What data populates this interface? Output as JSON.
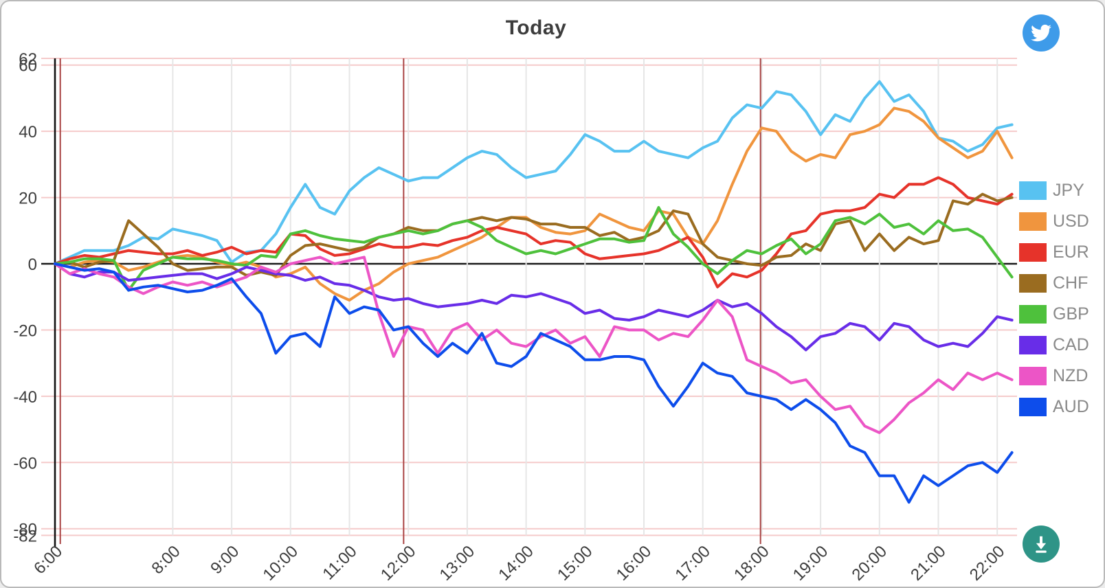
{
  "title": "Today",
  "buttons": {
    "twitter_color": "#3E9BE9",
    "download_color": "#2E9487"
  },
  "chart_data": {
    "type": "line",
    "title": "Today",
    "xlabel": "",
    "ylabel": "",
    "ylim": [
      -82,
      62
    ],
    "xlim_hours": [
      6,
      22.33
    ],
    "grid": {
      "h_grid_color": "#f5caca",
      "v_grid_color": "#e6e6e6",
      "zero_line_color": "#1a1a1a",
      "axis_line_color": "#111111",
      "marker_line_color": "#a94444",
      "tick_text_color": "#3d3d3d"
    },
    "legend_position": "right",
    "y_ticks": [
      62,
      60,
      40,
      20,
      0,
      -20,
      -40,
      -60,
      -80,
      -82
    ],
    "x_ticks": [
      {
        "hour": 6,
        "label": "6:00"
      },
      {
        "hour": 8,
        "label": "8:00"
      },
      {
        "hour": 9,
        "label": "9:00"
      },
      {
        "hour": 10,
        "label": "10:00"
      },
      {
        "hour": 11,
        "label": "11:00"
      },
      {
        "hour": 12,
        "label": "12:00"
      },
      {
        "hour": 13,
        "label": "13:00"
      },
      {
        "hour": 14,
        "label": "14:00"
      },
      {
        "hour": 15,
        "label": "15:00"
      },
      {
        "hour": 16,
        "label": "16:00"
      },
      {
        "hour": 17,
        "label": "17:00"
      },
      {
        "hour": 18,
        "label": "18:00"
      },
      {
        "hour": 19,
        "label": "19:00"
      },
      {
        "hour": 20,
        "label": "20:00"
      },
      {
        "hour": 21,
        "label": "21:00"
      },
      {
        "hour": 22,
        "label": "22:00"
      }
    ],
    "marker_hours": [
      6.09,
      11.92,
      17.98
    ],
    "x": [
      6,
      6.25,
      6.5,
      6.75,
      7,
      7.25,
      7.5,
      7.75,
      8,
      8.25,
      8.5,
      8.75,
      9,
      9.25,
      9.5,
      9.75,
      10,
      10.25,
      10.5,
      10.75,
      11,
      11.25,
      11.5,
      11.75,
      12,
      12.25,
      12.5,
      12.75,
      13,
      13.25,
      13.5,
      13.75,
      14,
      14.25,
      14.5,
      14.75,
      15,
      15.25,
      15.5,
      15.75,
      16,
      16.25,
      16.5,
      16.75,
      17,
      17.25,
      17.5,
      17.75,
      18,
      18.25,
      18.5,
      18.75,
      19,
      19.25,
      19.5,
      19.75,
      20,
      20.25,
      20.5,
      20.75,
      21,
      21.25,
      21.5,
      21.75,
      22,
      22.25
    ],
    "series": [
      {
        "name": "JPY",
        "color": "#58C2F1",
        "values": [
          0,
          2,
          4,
          4,
          4,
          5.5,
          8,
          7.5,
          10.5,
          9.5,
          8.5,
          7,
          0.5,
          3.5,
          4,
          9,
          17,
          24,
          17,
          15,
          22,
          26,
          29,
          27,
          25,
          26,
          26,
          29,
          32,
          34,
          33,
          29,
          26,
          27,
          28,
          33,
          39,
          37,
          34,
          34,
          37,
          34,
          33,
          32,
          35,
          37,
          44,
          48,
          47,
          52,
          51,
          46,
          39,
          45,
          43,
          50,
          55,
          49,
          51,
          46,
          38,
          37,
          34,
          36,
          41,
          42
        ]
      },
      {
        "name": "USD",
        "color": "#F0953E",
        "values": [
          0,
          -1,
          0.5,
          1,
          0.5,
          -2,
          -1,
          0.5,
          2,
          2.5,
          2,
          0.5,
          -0.5,
          0.5,
          -1,
          -4,
          -3,
          -1,
          -6,
          -9,
          -11,
          -8,
          -6,
          -2.5,
          0,
          1,
          2,
          4,
          6,
          8,
          11,
          14,
          14,
          11,
          9.5,
          9,
          10,
          15,
          13,
          11,
          10,
          16,
          15,
          8,
          6,
          13,
          24,
          34,
          41,
          40,
          34,
          31,
          33,
          32,
          39,
          40,
          42,
          47,
          46,
          43,
          38,
          35,
          32,
          34,
          40,
          32
        ]
      },
      {
        "name": "EUR",
        "color": "#E6332A",
        "values": [
          0,
          1.5,
          2.5,
          2,
          3,
          4,
          3.5,
          3,
          3,
          4,
          2.5,
          3.5,
          5,
          3,
          4,
          3.5,
          9,
          8.5,
          4.5,
          2.5,
          3,
          4.5,
          6,
          5,
          5,
          6,
          5.5,
          7,
          8,
          10,
          11,
          10,
          9,
          6,
          7,
          6.5,
          3,
          1.5,
          2,
          2.5,
          3,
          4,
          6,
          8,
          2,
          -7,
          -3,
          -4,
          -2,
          3,
          9,
          10,
          15,
          16,
          16,
          17,
          21,
          20,
          24,
          24,
          26,
          24,
          20,
          19,
          18,
          21
        ]
      },
      {
        "name": "CHF",
        "color": "#9A6C20",
        "values": [
          0,
          0.5,
          -1,
          0.5,
          1,
          13,
          9,
          5,
          0,
          -2,
          -1.5,
          -1,
          -1,
          -3.5,
          -2.5,
          -3.5,
          2.5,
          5.5,
          6,
          5,
          4,
          5,
          8,
          9,
          11,
          10,
          10,
          12,
          13,
          14,
          13,
          14,
          13.5,
          12,
          12,
          11,
          11,
          8.5,
          9.5,
          7,
          8,
          10,
          16,
          15,
          6,
          2,
          1,
          0,
          -0.5,
          2,
          2.5,
          6,
          4,
          12,
          13,
          4,
          9,
          4,
          8,
          6,
          7,
          19,
          18,
          21,
          19,
          20
        ]
      },
      {
        "name": "GBP",
        "color": "#4EC13C",
        "values": [
          0,
          0.5,
          1.5,
          1.5,
          1,
          -8,
          -2,
          0,
          2,
          1.5,
          1.5,
          1,
          0,
          -0.5,
          2.5,
          2,
          9,
          10,
          8.5,
          7.5,
          7,
          6.5,
          8,
          9,
          10,
          9,
          10,
          12,
          13,
          11,
          7,
          5,
          3,
          4,
          3,
          4.5,
          6,
          7.5,
          7.5,
          6.5,
          7,
          17,
          9,
          5,
          0,
          -3,
          1,
          4,
          3,
          5.5,
          7.5,
          3,
          6,
          13,
          14,
          12,
          15,
          11,
          12,
          9,
          13,
          10,
          10.5,
          8,
          2,
          -4
        ]
      },
      {
        "name": "CAD",
        "color": "#682DE8",
        "values": [
          0,
          -3,
          -4,
          -2.5,
          -2.5,
          -5,
          -4.5,
          -4,
          -3.5,
          -3,
          -3,
          -4.5,
          -3,
          -1,
          -2,
          -3,
          -3.5,
          -5,
          -4,
          -6,
          -6.5,
          -8,
          -10,
          -11,
          -10.5,
          -12,
          -13,
          -12.5,
          -12,
          -11,
          -12,
          -9.5,
          -10,
          -9,
          -10.5,
          -12,
          -15,
          -14,
          -16.5,
          -17,
          -16,
          -14,
          -15,
          -16,
          -14,
          -11,
          -13,
          -12,
          -15,
          -19,
          -22,
          -26,
          -22,
          -21,
          -18,
          -19,
          -23,
          -18,
          -19,
          -23,
          -25,
          -24,
          -25,
          -21,
          -16,
          -17
        ]
      },
      {
        "name": "NZD",
        "color": "#EC55C6",
        "values": [
          0,
          -3,
          -1.5,
          -3,
          -4,
          -7,
          -9,
          -7,
          -5.5,
          -6.5,
          -5.5,
          -7,
          -5.5,
          -4,
          -1,
          -2.5,
          0,
          1,
          2,
          0,
          1,
          2,
          -15,
          -28,
          -19,
          -20,
          -27,
          -20,
          -18,
          -23,
          -20,
          -24,
          -25,
          -22,
          -20,
          -24,
          -22,
          -28,
          -19,
          -20,
          -20,
          -23,
          -21,
          -22,
          -17,
          -11,
          -16,
          -29,
          -31,
          -33,
          -36,
          -35,
          -40,
          -44,
          -43,
          -49,
          -51,
          -47,
          -42,
          -39,
          -35,
          -38,
          -33,
          -35,
          -33,
          -35
        ]
      },
      {
        "name": "AUD",
        "color": "#0D4DEB",
        "values": [
          0,
          -1,
          -2,
          -1.5,
          -2.5,
          -8,
          -7,
          -6.5,
          -7.5,
          -8.5,
          -8,
          -6.5,
          -4.5,
          -10,
          -15,
          -27,
          -22,
          -21,
          -25,
          -10,
          -15,
          -13,
          -14,
          -20,
          -19,
          -24,
          -28,
          -24,
          -27,
          -21,
          -30,
          -31,
          -28,
          -21,
          -23,
          -25,
          -29,
          -29,
          -28,
          -28,
          -29,
          -37,
          -43,
          -37,
          -30,
          -33,
          -34,
          -39,
          -40,
          -41,
          -44,
          -41,
          -44,
          -48,
          -55,
          -57,
          -64,
          -64,
          -72,
          -64,
          -67,
          -64,
          -61,
          -60,
          -63,
          -57
        ]
      }
    ]
  }
}
